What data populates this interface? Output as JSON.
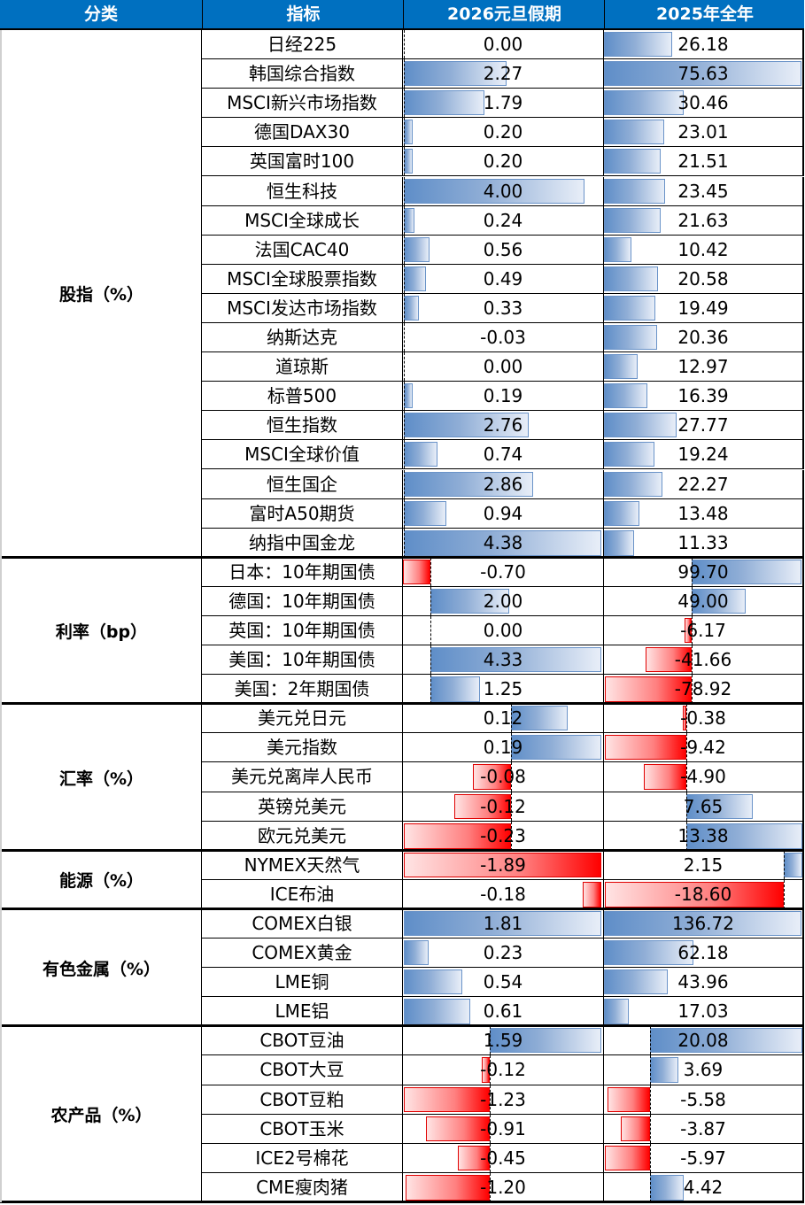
{
  "header": {
    "columns": [
      "分类",
      "指标",
      "2026元旦假期",
      "2025年全年"
    ]
  },
  "colors": {
    "header_bg": "#0070C0",
    "header_text": "#FFFFFF",
    "positive_bar": "#5F8EC8",
    "negative_bar": "#FF0000"
  },
  "sections": [
    {
      "category": "股指（%）",
      "axis1": 1,
      "axis1_dashed": true,
      "axis2": 0,
      "axis2_dashed": false,
      "rows": [
        {
          "name": "日经225",
          "v1": "0.00",
          "v2": "26.18",
          "b1": [
            1,
            0,
            0
          ],
          "b2": [
            0,
            77,
            0
          ]
        },
        {
          "name": "韩国综合指数",
          "v1": "2.27",
          "v2": "75.63",
          "b1": [
            1,
            116,
            0
          ],
          "b2": [
            0,
            223,
            0
          ]
        },
        {
          "name": "MSCI新兴市场指数",
          "v1": "1.79",
          "v2": "30.46",
          "b1": [
            1,
            91,
            0
          ],
          "b2": [
            0,
            90,
            0
          ]
        },
        {
          "name": "德国DAX30",
          "v1": "0.20",
          "v2": "23.01",
          "b1": [
            1,
            10,
            0
          ],
          "b2": [
            0,
            68,
            0
          ]
        },
        {
          "name": "英国富时100",
          "v1": "0.20",
          "v2": "21.51",
          "b1": [
            1,
            10,
            0
          ],
          "b2": [
            0,
            64,
            0
          ]
        },
        {
          "name": "恒生科技",
          "v1": "4.00",
          "v2": "23.45",
          "b1": [
            1,
            204,
            0
          ],
          "b2": [
            0,
            69,
            0
          ]
        },
        {
          "name": "MSCI全球成长",
          "v1": "0.24",
          "v2": "21.63",
          "b1": [
            1,
            12,
            0
          ],
          "b2": [
            0,
            64,
            0
          ]
        },
        {
          "name": "法国CAC40",
          "v1": "0.56",
          "v2": "10.42",
          "b1": [
            1,
            29,
            0
          ],
          "b2": [
            0,
            31,
            0
          ]
        },
        {
          "name": "MSCI全球股票指数",
          "v1": "0.49",
          "v2": "20.58",
          "b1": [
            1,
            25,
            0
          ],
          "b2": [
            0,
            61,
            0
          ]
        },
        {
          "name": "MSCI发达市场指数",
          "v1": "0.33",
          "v2": "19.49",
          "b1": [
            1,
            17,
            0
          ],
          "b2": [
            0,
            58,
            0
          ]
        },
        {
          "name": "纳斯达克",
          "v1": "-0.03",
          "v2": "20.36",
          "b1": [
            1,
            0,
            1
          ],
          "b2": [
            0,
            60,
            0
          ]
        },
        {
          "name": "道琼斯",
          "v1": "0.00",
          "v2": "12.97",
          "b1": [
            1,
            0,
            0
          ],
          "b2": [
            0,
            38,
            0
          ]
        },
        {
          "name": "标普500",
          "v1": "0.19",
          "v2": "16.39",
          "b1": [
            1,
            10,
            0
          ],
          "b2": [
            0,
            49,
            0
          ]
        },
        {
          "name": "恒生指数",
          "v1": "2.76",
          "v2": "27.77",
          "b1": [
            1,
            141,
            0
          ],
          "b2": [
            0,
            82,
            0
          ]
        },
        {
          "name": "MSCI全球价值",
          "v1": "0.74",
          "v2": "19.24",
          "b1": [
            1,
            38,
            0
          ],
          "b2": [
            0,
            57,
            0
          ]
        },
        {
          "name": "恒生国企",
          "v1": "2.86",
          "v2": "22.27",
          "b1": [
            1,
            146,
            0
          ],
          "b2": [
            0,
            66,
            0
          ]
        },
        {
          "name": "富时A50期货",
          "v1": "0.94",
          "v2": "13.48",
          "b1": [
            1,
            48,
            0
          ],
          "b2": [
            0,
            40,
            0
          ]
        },
        {
          "name": "纳指中国金龙",
          "v1": "4.38",
          "v2": "11.33",
          "b1": [
            1,
            223,
            0
          ],
          "b2": [
            0,
            34,
            0
          ]
        }
      ]
    },
    {
      "category": "利率（bp）",
      "axis1": 31,
      "axis1_dashed": true,
      "axis2": 99,
      "axis2_dashed": true,
      "rows": [
        {
          "name": "日本：10年期国债",
          "v1": "-0.70",
          "v2": "99.70",
          "b1": [
            0,
            31,
            1
          ],
          "b2": [
            99,
            124,
            0
          ]
        },
        {
          "name": "德国：10年期国债",
          "v1": "2.00",
          "v2": "49.00",
          "b1": [
            31,
            89,
            0
          ],
          "b2": [
            99,
            61,
            0
          ]
        },
        {
          "name": "英国：10年期国债",
          "v1": "0.00",
          "v2": "-6.17",
          "b1": [
            31,
            0,
            0
          ],
          "b2": [
            91,
            8,
            1
          ]
        },
        {
          "name": "美国：10年期国债",
          "v1": "4.33",
          "v2": "-41.66",
          "b1": [
            31,
            193,
            0
          ],
          "b2": [
            47,
            52,
            1
          ]
        },
        {
          "name": "美国：2年期国债",
          "v1": "1.25",
          "v2": "-78.92",
          "b1": [
            31,
            56,
            0
          ],
          "b2": [
            1,
            98,
            1
          ]
        }
      ]
    },
    {
      "category": "汇率（%）",
      "axis1": 122,
      "axis1_dashed": true,
      "axis2": 93,
      "axis2_dashed": true,
      "rows": [
        {
          "name": "美元兑日元",
          "v1": "0.12",
          "v2": "-0.38",
          "b1": [
            122,
            64,
            0
          ],
          "b2": [
            89,
            4,
            1
          ]
        },
        {
          "name": "美元指数",
          "v1": "0.19",
          "v2": "-9.42",
          "b1": [
            122,
            102,
            0
          ],
          "b2": [
            1,
            92,
            1
          ]
        },
        {
          "name": "美元兑离岸人民币",
          "v1": "-0.08",
          "v2": "-4.90",
          "b1": [
            79,
            43,
            1
          ],
          "b2": [
            45,
            48,
            1
          ]
        },
        {
          "name": "英镑兑美元",
          "v1": "-0.12",
          "v2": "7.65",
          "b1": [
            58,
            64,
            1
          ],
          "b2": [
            93,
            75,
            0
          ]
        },
        {
          "name": "欧元兑美元",
          "v1": "-0.23",
          "v2": "13.38",
          "b1": [
            1,
            121,
            1
          ],
          "b2": [
            93,
            131,
            0
          ]
        }
      ]
    },
    {
      "category": "能源（%）",
      "axis1": 224,
      "axis1_dashed": false,
      "axis2": 203,
      "axis2_dashed": true,
      "rows": [
        {
          "name": "NYMEX天然气",
          "v1": "-1.89",
          "v2": "2.15",
          "b1": [
            1,
            223,
            1
          ],
          "b2": [
            203,
            21,
            0
          ]
        },
        {
          "name": "ICE布油",
          "v1": "-0.18",
          "v2": "-18.60",
          "b1": [
            203,
            21,
            1
          ],
          "b2": [
            1,
            202,
            1
          ]
        }
      ]
    },
    {
      "category": "有色金属（%）",
      "axis1": 1,
      "axis1_dashed": false,
      "axis2": 0,
      "axis2_dashed": false,
      "rows": [
        {
          "name": "COMEX白银",
          "v1": "1.81",
          "v2": "136.72",
          "b1": [
            1,
            223,
            0
          ],
          "b2": [
            0,
            223,
            0
          ]
        },
        {
          "name": "COMEX黄金",
          "v1": "0.23",
          "v2": "62.18",
          "b1": [
            1,
            28,
            0
          ],
          "b2": [
            0,
            101,
            0
          ]
        },
        {
          "name": "LME铜",
          "v1": "0.54",
          "v2": "43.96",
          "b1": [
            1,
            66,
            0
          ],
          "b2": [
            0,
            72,
            0
          ]
        },
        {
          "name": "LME铝",
          "v1": "0.61",
          "v2": "17.03",
          "b1": [
            1,
            75,
            0
          ],
          "b2": [
            0,
            28,
            0
          ]
        }
      ]
    },
    {
      "category": "农产品（%）",
      "axis1": 98,
      "axis1_dashed": true,
      "axis2": 52,
      "axis2_dashed": true,
      "rows": [
        {
          "name": "CBOT豆油",
          "v1": "1.59",
          "v2": "20.08",
          "b1": [
            98,
            126,
            0
          ],
          "b2": [
            52,
            172,
            0
          ]
        },
        {
          "name": "CBOT大豆",
          "v1": "-0.12",
          "v2": "3.69",
          "b1": [
            89,
            9,
            1
          ],
          "b2": [
            52,
            32,
            0
          ]
        },
        {
          "name": "CBOT豆粕",
          "v1": "-1.23",
          "v2": "-5.58",
          "b1": [
            1,
            97,
            1
          ],
          "b2": [
            4,
            48,
            1
          ]
        },
        {
          "name": "CBOT玉米",
          "v1": "-0.91",
          "v2": "-3.87",
          "b1": [
            26,
            72,
            1
          ],
          "b2": [
            19,
            33,
            1
          ]
        },
        {
          "name": "ICE2号棉花",
          "v1": "-0.45",
          "v2": "-5.97",
          "b1": [
            62,
            36,
            1
          ],
          "b2": [
            1,
            51,
            1
          ]
        },
        {
          "name": "CME瘦肉猪",
          "v1": "-1.20",
          "v2": "4.42",
          "b1": [
            3,
            95,
            1
          ],
          "b2": [
            52,
            38,
            0
          ]
        }
      ]
    }
  ]
}
